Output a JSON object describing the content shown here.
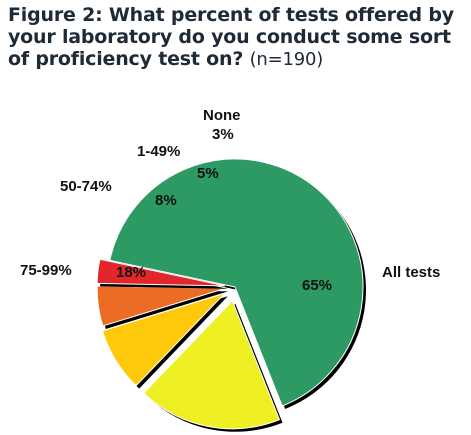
{
  "title": {
    "main": "Figure 2: What percent of tests offered by your laboratory do you conduct some sort of proficiency test on?",
    "note": "(n=190)"
  },
  "chart_data": {
    "type": "pie",
    "title": "Figure 2: What percent of tests offered by your laboratory do you conduct some sort of proficiency test on?",
    "subtitle": "(n=190)",
    "slices": [
      {
        "label": "All tests",
        "value": 65,
        "value_label": "65%",
        "color": "#2e9a63"
      },
      {
        "label": "75-99%",
        "value": 18,
        "value_label": "18%",
        "color": "#eef024"
      },
      {
        "label": "50-74%",
        "value": 8,
        "value_label": "8%",
        "color": "#ffc90b"
      },
      {
        "label": "1-49%",
        "value": 5,
        "value_label": "5%",
        "color": "#ec6b25"
      },
      {
        "label": "None",
        "value": 3,
        "value_label": "3%",
        "color": "#e3262b"
      }
    ]
  }
}
